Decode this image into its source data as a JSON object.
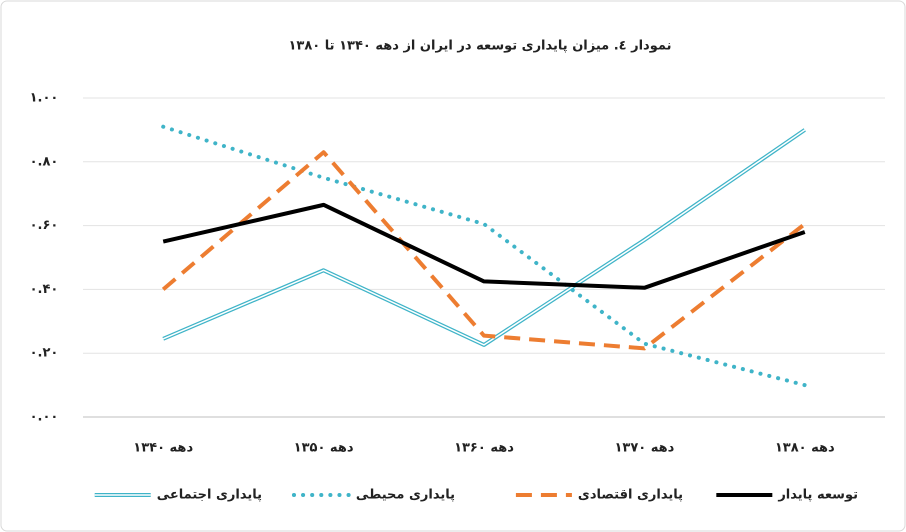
{
  "chart_data": {
    "type": "line",
    "title": "نمودار ٤. میزان پایداری توسعه در ایران از دهه ۱۳۴۰ تا ۱۳۸۰",
    "categories": [
      "دهه ۱۳۴۰",
      "دهه ۱۳۵۰",
      "دهه ۱۳۶۰",
      "دهه ۱۳۷۰",
      "دهه ۱۳۸۰"
    ],
    "ylim": [
      0,
      1
    ],
    "yticks": [
      {
        "value": 0,
        "label": "۰.۰۰"
      },
      {
        "value": 0.2,
        "label": "۰.۲۰"
      },
      {
        "value": 0.4,
        "label": "۰.۴۰"
      },
      {
        "value": 0.6,
        "label": "۰.۶۰"
      },
      {
        "value": 0.8,
        "label": "۰.۸۰"
      },
      {
        "value": 1,
        "label": "۱.۰۰"
      }
    ],
    "grid": true,
    "series": [
      {
        "name": "توسعه پایدار",
        "color": "#000000",
        "style": "solid",
        "values": [
          0.55,
          0.665,
          0.425,
          0.405,
          0.58
        ]
      },
      {
        "name": "پایداری اقتصادی",
        "color": "#ed7d31",
        "style": "dashed",
        "values": [
          0.4,
          0.83,
          0.255,
          0.215,
          0.605
        ]
      },
      {
        "name": "پایداری محیطی",
        "color": "#3fb4c8",
        "style": "dotted",
        "values": [
          0.91,
          0.75,
          0.605,
          0.23,
          0.1
        ]
      },
      {
        "name": "پایداری اجتماعی",
        "color": "#3fb4c8",
        "style": "double",
        "values": [
          0.245,
          0.46,
          0.226,
          0.555,
          0.9
        ]
      }
    ]
  }
}
